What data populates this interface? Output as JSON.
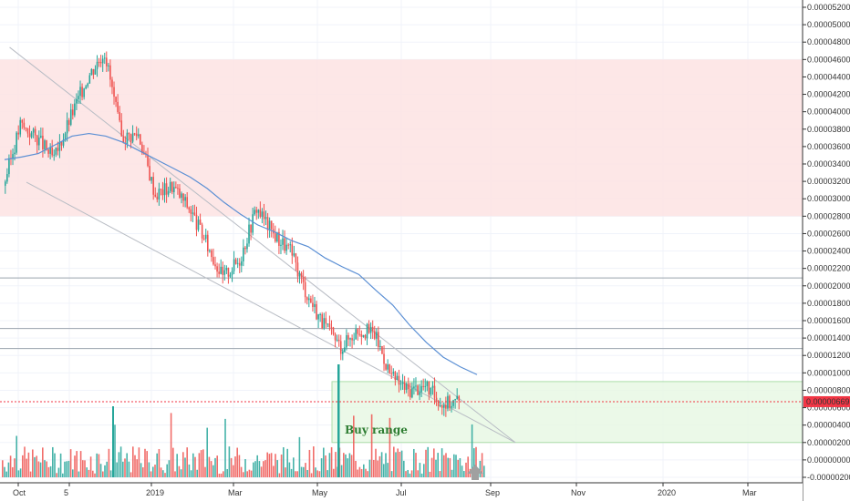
{
  "chart_data": {
    "type": "candlestick",
    "price_axis": {
      "ticks": [
        "0.00005200",
        "0.00005000",
        "0.00004800",
        "0.00004600",
        "0.00004400",
        "0.00004200",
        "0.00004000",
        "0.00003800",
        "0.00003600",
        "0.00003400",
        "0.00003200",
        "0.00003000",
        "0.00002800",
        "0.00002600",
        "0.00002400",
        "0.00002200",
        "0.00002000",
        "0.00001800",
        "0.00001600",
        "0.00001400",
        "0.00001200",
        "0.00001000",
        "0.00000800",
        "0.00000600",
        "0.00000400",
        "0.00000200",
        "0.00000000",
        "-0.00000200"
      ],
      "range": [
        -2.2e-06,
        5.23e-05
      ]
    },
    "time_axis": {
      "labels": [
        "Oct",
        "5",
        "2019",
        "Mar",
        "May",
        "Jul",
        "Sep",
        "Nov",
        "2020",
        "Mar"
      ]
    },
    "current_price": {
      "label": "0.00000669",
      "value": 6.69e-06,
      "color": "#f23645"
    },
    "zones": [
      {
        "name": "resistance-zone",
        "from": 2.8e-05,
        "to": 4.6e-05,
        "color": "#fde3e3"
      },
      {
        "name": "buy-range-zone",
        "from": 2e-06,
        "to": 9e-06,
        "color": "#e8f8e4",
        "label": "Buy range",
        "label_color": "#2e7d32"
      }
    ],
    "horizontal_levels": [
      2.09e-05,
      1.51e-05,
      1.28e-05
    ],
    "moving_average": {
      "color": "#5b8fd4",
      "points": [
        [
          0,
          3.45e-05
        ],
        [
          1,
          3.48e-05
        ],
        [
          2,
          3.52e-05
        ],
        [
          3,
          3.62e-05
        ],
        [
          4,
          3.72e-05
        ],
        [
          5,
          3.75e-05
        ],
        [
          6,
          3.72e-05
        ],
        [
          7,
          3.65e-05
        ],
        [
          8,
          3.55e-05
        ],
        [
          9,
          3.45e-05
        ],
        [
          10,
          3.35e-05
        ],
        [
          11,
          3.25e-05
        ],
        [
          12,
          3.12e-05
        ],
        [
          13,
          2.96e-05
        ],
        [
          14,
          2.82e-05
        ],
        [
          15,
          2.7e-05
        ],
        [
          16,
          2.62e-05
        ],
        [
          17,
          2.52e-05
        ],
        [
          18,
          2.45e-05
        ],
        [
          19,
          2.32e-05
        ],
        [
          20,
          2.22e-05
        ],
        [
          21,
          2.13e-05
        ],
        [
          22,
          1.95e-05
        ],
        [
          23,
          1.78e-05
        ],
        [
          24,
          1.55e-05
        ],
        [
          25,
          1.35e-05
        ],
        [
          26,
          1.18e-05
        ],
        [
          27,
          1.07e-05
        ],
        [
          28,
          9.8e-06
        ]
      ]
    },
    "wedge_lines": [
      {
        "from": [
          0.3,
          4.74e-05
        ],
        "to": [
          17.3,
          2e-06
        ]
      },
      {
        "from": [
          1.3,
          3.19e-05
        ],
        "to": [
          17.3,
          2e-06
        ]
      }
    ],
    "candles_close": [
      3.15e-05,
      3.85e-05,
      3.7e-05,
      3.45e-05,
      3.95e-05,
      4.4e-05,
      4.7e-05,
      3.7e-05,
      3.75e-05,
      3.05e-05,
      3.15e-05,
      2.9e-05,
      2.5e-05,
      2.1e-05,
      2.3e-05,
      2.9e-05,
      2.6e-05,
      2.4e-05,
      1.9e-05,
      1.55e-05,
      1.3e-05,
      1.5e-05,
      1.45e-05,
      9.5e-06,
      8e-06,
      8.5e-06,
      6.5e-06,
      6.8e-06
    ],
    "volume_range": [
      0,
      1.1e-05
    ]
  }
}
